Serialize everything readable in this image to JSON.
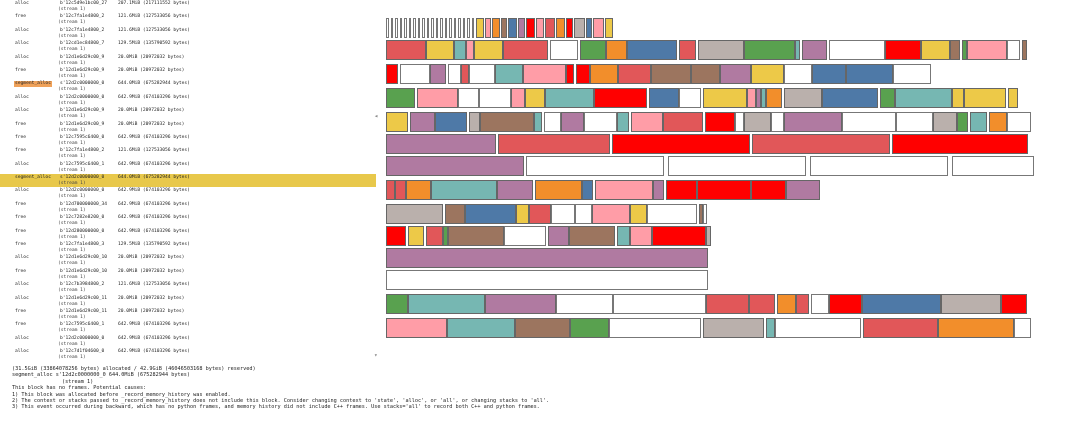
{
  "trace": {
    "rows": [
      {
        "action": "alloc",
        "addr": "b'12c5d9e1bc00_27",
        "size": "207.1MiB (217111552 bytes)",
        "stream": "(stream 1)"
      },
      {
        "action": "free",
        "addr": "b'12c7fa1e4800_2",
        "size": "121.6MiB (127533056 bytes)",
        "stream": "(stream 1)"
      },
      {
        "action": "alloc",
        "addr": "b'12c7fa1e4800_2",
        "size": "121.6MiB (127533056 bytes)",
        "stream": "(stream 1)"
      },
      {
        "action": "alloc",
        "addr": "b'12cd1ec84800_7",
        "size": "129.5MiB (135790592 bytes)",
        "stream": "(stream 1)"
      },
      {
        "action": "alloc",
        "addr": "b'12d1e6d29c00_9",
        "size": "20.0MiB (20972032 bytes)",
        "stream": "(stream 1)"
      },
      {
        "action": "free",
        "addr": "b'12d1e6d29c00_9",
        "size": "20.0MiB (20972032 bytes)",
        "stream": "(stream 1)"
      },
      {
        "action": "segment_alloc",
        "addr": "s'12d2c0000000_0",
        "size": "644.0MiB (675282944 bytes)",
        "stream": "(stream 1)"
      },
      {
        "action": "alloc",
        "addr": "b'12d2c0000000_0",
        "size": "642.9MiB (674103296 bytes)",
        "stream": "(stream 1)"
      },
      {
        "action": "alloc",
        "addr": "b'12d1e6d29c00_9",
        "size": "20.0MiB (20972032 bytes)",
        "stream": "(stream 1)"
      },
      {
        "action": "free",
        "addr": "b'12d1e6d29c00_9",
        "size": "20.0MiB (20972032 bytes)",
        "stream": "(stream 1)"
      },
      {
        "action": "free",
        "addr": "b'12c7595c6400_0",
        "size": "642.9MiB (674103296 bytes)",
        "stream": "(stream 1)"
      },
      {
        "action": "free",
        "addr": "b'12c7fa1e4800_2",
        "size": "121.6MiB (127533056 bytes)",
        "stream": "(stream 1)"
      },
      {
        "action": "alloc",
        "addr": "b'12c7595c6400_1",
        "size": "642.9MiB (674103296 bytes)",
        "stream": "(stream 1)"
      },
      {
        "action": "segment_alloc",
        "addr": "s'12d2c0000000_0",
        "size": "644.0MiB (675282944 bytes)",
        "stream": "(stream 1)"
      },
      {
        "action": "alloc",
        "addr": "b'12d2c0000000_0",
        "size": "642.9MiB (674103296 bytes)",
        "stream": "(stream 1)"
      },
      {
        "action": "free",
        "addr": "b'12d700000000_34",
        "size": "642.9MiB (674103296 bytes)",
        "stream": "(stream 1)"
      },
      {
        "action": "free",
        "addr": "b'12c7282e8200_0",
        "size": "642.9MiB (674103296 bytes)",
        "stream": "(stream 1)"
      },
      {
        "action": "free",
        "addr": "b'12d280000000_0",
        "size": "642.9MiB (674103296 bytes)",
        "stream": "(stream 1)"
      },
      {
        "action": "free",
        "addr": "b'12c7fa1e4800_3",
        "size": "129.5MiB (135790592 bytes)",
        "stream": "(stream 1)"
      },
      {
        "action": "alloc",
        "addr": "b'12d1e6d29c00_10",
        "size": "20.0MiB (20972032 bytes)",
        "stream": "(stream 1)"
      },
      {
        "action": "free",
        "addr": "b'12d1e6d29c00_10",
        "size": "20.0MiB (20972032 bytes)",
        "stream": "(stream 1)"
      },
      {
        "action": "alloc",
        "addr": "b'12c7b3984800_2",
        "size": "121.6MiB (127533056 bytes)",
        "stream": "(stream 1)"
      },
      {
        "action": "alloc",
        "addr": "b'12d1e6d29c00_11",
        "size": "20.0MiB (20972032 bytes)",
        "stream": "(stream 1)"
      },
      {
        "action": "free",
        "addr": "b'12d1e6d29c00_11",
        "size": "20.0MiB (20972032 bytes)",
        "stream": "(stream 1)"
      },
      {
        "action": "free",
        "addr": "b'12c7595c6400_1",
        "size": "642.9MiB (674103296 bytes)",
        "stream": "(stream 1)"
      },
      {
        "action": "alloc",
        "addr": "b'12d2c0000000_0",
        "size": "642.9MiB (674103296 bytes)",
        "stream": "(stream 1)"
      },
      {
        "action": "alloc",
        "addr": "b'12c7d1f04600_0",
        "size": "642.9MiB (674103296 bytes)",
        "stream": "(stream 1)"
      }
    ],
    "highlight_index": 13,
    "scroll_up_glyph": "◂",
    "scroll_down_glyph": "▾"
  },
  "summary": {
    "memory_line": "(31.5GiB (33864078256 bytes) allocated / 42.9GiB (46046503168 bytes) reserved)",
    "selected_line": "segment_alloc s'12d2c0000000_0   644.0MiB (675282944 bytes)",
    "selected_stream": "(stream 1)",
    "no_frames": "This block has no frames. Potential causes:",
    "cause_1": "1) This block was allocated before _record_memory_history was enabled.",
    "cause_2": "2) The context or stacks passed to _record_memory_history does not include this block. Consider changing context to 'state', 'alloc', or 'all', or changing stacks to 'all'.",
    "cause_3": "3) This event occurred during backward, which has no python frames, and memory history did not include C++ frames. Use stacks='all' to record both C++ and python frames."
  },
  "colors": {
    "red": "#ff0000",
    "coral": "#e15759",
    "pink": "#ff9da7",
    "teal": "#76b7b2",
    "blue": "#4e79a7",
    "orange": "#f28e2b",
    "yellow": "#edc948",
    "green": "#59a14f",
    "purple": "#b07aa1",
    "brown": "#9c755f",
    "gray": "#bab0ac",
    "highlight": "#e8c84b",
    "segment_alloc": "#f0a25a"
  }
}
